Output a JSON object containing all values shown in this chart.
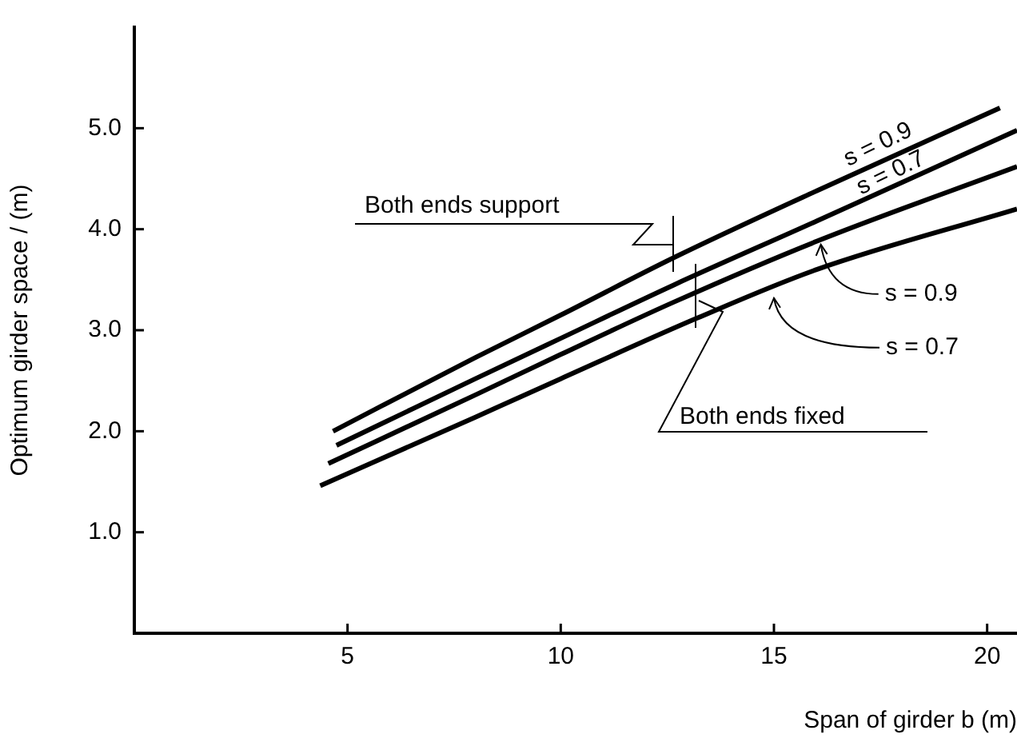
{
  "chart_data": {
    "type": "line",
    "xlabel": "Span of girder b (m)",
    "ylabel": "Optimum girder space / (m)",
    "xlim": [
      0,
      20.7
    ],
    "xticks": [
      5,
      10,
      15,
      20
    ],
    "ylim": [
      0,
      6
    ],
    "yticks": [
      {
        "value": 1,
        "label": "1.0"
      },
      {
        "value": 2,
        "label": "2.0"
      },
      {
        "value": 3,
        "label": "3.0"
      },
      {
        "value": 4,
        "label": "4.0"
      },
      {
        "value": 5,
        "label": "5.0"
      }
    ],
    "series": [
      {
        "color": "#000000",
        "x": [
          4.66,
          8,
          10,
          12.66,
          16,
          20.3
        ],
        "values": [
          2.0,
          2.73,
          3.15,
          3.72,
          4.38,
          5.2
        ]
      },
      {
        "color": "#000000",
        "x": [
          4.74,
          8,
          10,
          12.66,
          16,
          20.7
        ],
        "values": [
          1.86,
          2.52,
          2.92,
          3.45,
          4.08,
          4.98
        ]
      },
      {
        "color": "#000000",
        "x": [
          4.55,
          8,
          10,
          12.66,
          16,
          20.7
        ],
        "values": [
          1.68,
          2.36,
          2.76,
          3.28,
          3.88,
          4.62
        ]
      },
      {
        "color": "#000000",
        "x": [
          4.36,
          8,
          10,
          13.2,
          16,
          20.7
        ],
        "values": [
          1.46,
          2.14,
          2.52,
          3.12,
          3.6,
          4.2
        ]
      }
    ],
    "annotations": [
      "Both ends support",
      "Both ends fixed",
      {
        "text": "s = 0.9",
        "x": 17.6,
        "y": 4.7
      },
      {
        "text": "s = 0.7",
        "x": 17.9,
        "y": 4.42
      },
      {
        "text": "s = 0.9",
        "x": 16.1,
        "y": 3.88
      },
      {
        "text": "s = 0.7",
        "x": 15.0,
        "y": 3.35
      }
    ],
    "grid": false,
    "legend": false,
    "marker": "none",
    "line_style": "solid"
  }
}
